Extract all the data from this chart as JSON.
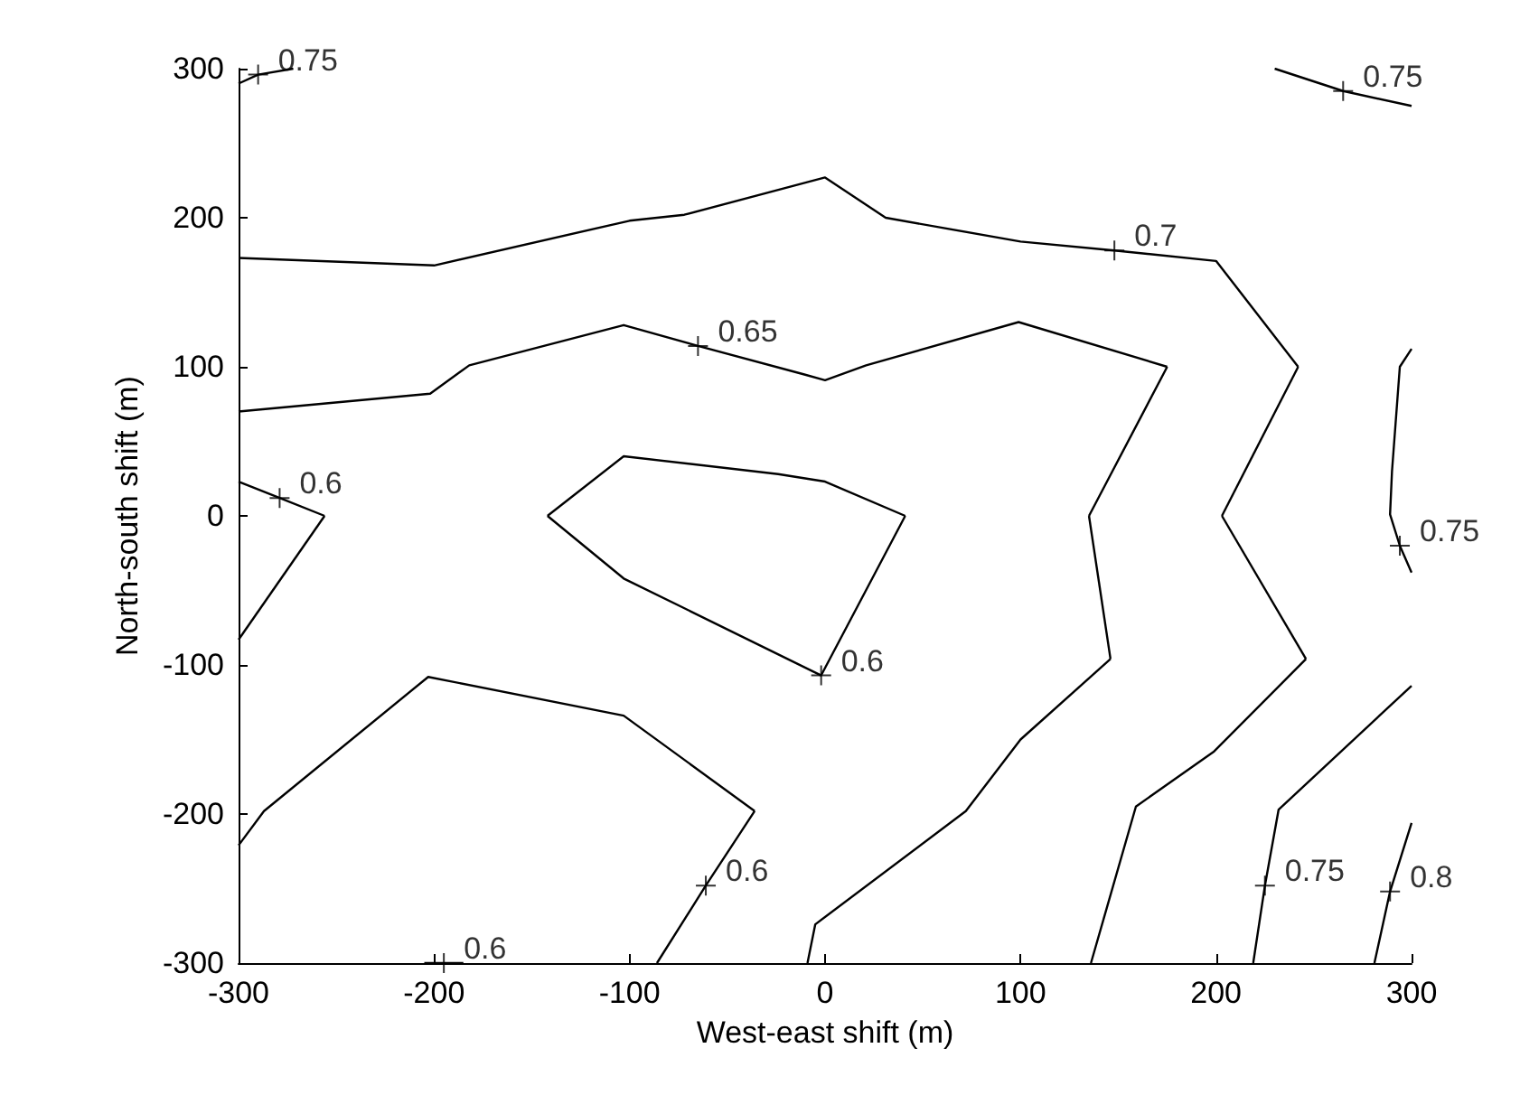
{
  "chart_data": {
    "type": "line",
    "xlabel": "West-east shift (m)",
    "ylabel": "North-south shift (m)",
    "xlim": [
      -300,
      300
    ],
    "ylim": [
      -300,
      300
    ],
    "xticks": [
      -300,
      -200,
      -100,
      0,
      100,
      200,
      300
    ],
    "yticks": [
      -300,
      -200,
      -100,
      0,
      100,
      200,
      300
    ],
    "marker": "none",
    "line_style": "solid",
    "series": [
      {
        "color": "#000000",
        "x": [
          -300,
          -200,
          -100,
          -72,
          0,
          31,
          100,
          148,
          200,
          242
        ],
        "values": [
          173,
          168,
          198,
          202,
          227,
          200,
          184,
          178,
          171,
          100
        ]
      },
      {
        "color": "#000000",
        "x": [
          203,
          242
        ],
        "values": [
          0,
          100
        ]
      },
      {
        "color": "#000000",
        "x": [
          203,
          246
        ],
        "values": [
          0,
          -96
        ]
      },
      {
        "color": "#000000",
        "x": [
          136,
          159,
          199,
          246
        ],
        "values": [
          -300,
          -195,
          -158,
          -96
        ]
      },
      {
        "color": "#000000",
        "x": [
          -300,
          -202,
          -182,
          -103,
          -65,
          -11,
          0,
          21,
          99,
          175
        ],
        "values": [
          70,
          82,
          101,
          128,
          114,
          95,
          91,
          101,
          130,
          100
        ]
      },
      {
        "color": "#000000",
        "x": [
          135,
          147,
          175
        ],
        "values": [
          0,
          30,
          100
        ]
      },
      {
        "color": "#000000",
        "x": [
          135,
          146
        ],
        "values": [
          0,
          -96
        ]
      },
      {
        "color": "#000000",
        "x": [
          -9,
          -5,
          72,
          100,
          146
        ],
        "values": [
          -300,
          -274,
          -198,
          -150,
          -96
        ]
      },
      {
        "color": "#000000",
        "x": [
          -142,
          -103,
          -24,
          0,
          41
        ],
        "values": [
          0,
          40,
          28,
          23,
          0
        ]
      },
      {
        "color": "#000000",
        "x": [
          -142,
          -103,
          -2,
          41
        ],
        "values": [
          0,
          -42,
          -107,
          0
        ]
      },
      {
        "color": "#000000",
        "x": [
          -300,
          -279,
          -256
        ],
        "values": [
          23,
          12,
          0
        ]
      },
      {
        "color": "#000000",
        "x": [
          -300,
          -256
        ],
        "values": [
          -83,
          0
        ]
      },
      {
        "color": "#000000",
        "x": [
          -300,
          -287,
          -203,
          -103,
          -36
        ],
        "values": [
          -221,
          -198,
          -108,
          -134,
          -198
        ]
      },
      {
        "color": "#000000",
        "x": [
          -86,
          -61,
          -36
        ],
        "values": [
          -300,
          -248,
          -198
        ]
      },
      {
        "color": "#000000",
        "x": [
          -205,
          -185
        ],
        "values": [
          -300,
          -300
        ]
      },
      {
        "color": "#000000",
        "x": [
          230,
          265,
          300
        ],
        "values": [
          300,
          285,
          275
        ]
      },
      {
        "color": "#000000",
        "x": [
          300,
          294,
          290,
          289,
          294,
          300
        ],
        "values": [
          112,
          100,
          30,
          1,
          -20,
          -38
        ]
      },
      {
        "color": "#000000",
        "x": [
          -300,
          -290,
          -272
        ],
        "values": [
          290,
          296,
          300
        ]
      },
      {
        "color": "#000000",
        "x": [
          219,
          225,
          232,
          300
        ],
        "values": [
          -300,
          -248,
          -197,
          -114
        ]
      },
      {
        "color": "#000000",
        "x": [
          281,
          289,
          300
        ],
        "values": [
          -300,
          -252,
          -206
        ]
      }
    ],
    "annotations": [
      {
        "text": "0.75",
        "x": -290,
        "y": 296
      },
      {
        "text": "0.7",
        "x": 148,
        "y": 178
      },
      {
        "text": "0.65",
        "x": -65,
        "y": 114
      },
      {
        "text": "0.6",
        "x": -279,
        "y": 12
      },
      {
        "text": "0.6",
        "x": -2,
        "y": -107
      },
      {
        "text": "0.6",
        "x": -61,
        "y": -248
      },
      {
        "text": "0.6",
        "x": -195,
        "y": -300
      },
      {
        "text": "0.75",
        "x": 265,
        "y": 285
      },
      {
        "text": "0.75",
        "x": 294,
        "y": -20
      },
      {
        "text": "0.75",
        "x": 225,
        "y": -248
      },
      {
        "text": "0.8",
        "x": 289,
        "y": -252
      }
    ]
  }
}
